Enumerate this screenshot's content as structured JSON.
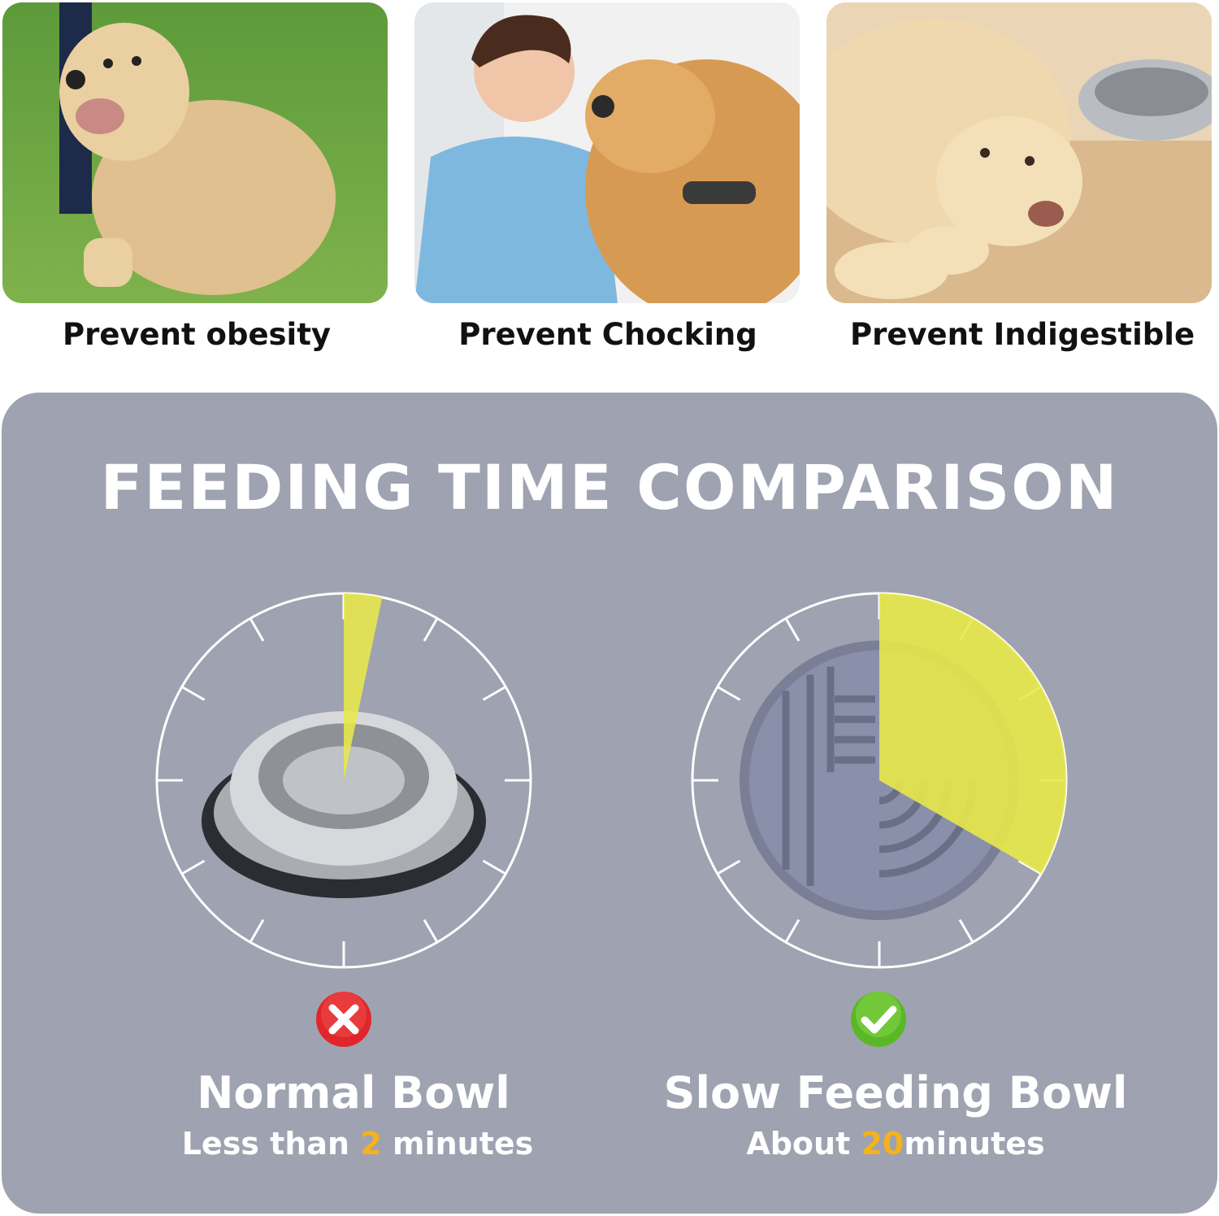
{
  "features": [
    {
      "photo": "overweight-labrador-photo",
      "caption": "Prevent obesity"
    },
    {
      "photo": "vet-with-golden-retriever-photo",
      "caption": "Prevent Chocking"
    },
    {
      "photo": "labrador-with-steel-bowl-photo",
      "caption": "Prevent Indigestible"
    }
  ],
  "comparison": {
    "title": "FEEDING TIME COMPARISON",
    "dial_ticks": 12,
    "normal": {
      "icon": "x-icon",
      "name": "Normal Bowl",
      "time_prefix": "Less than ",
      "time_value": "2",
      "time_suffix": " minutes",
      "dial_fraction": 0.033
    },
    "slow": {
      "icon": "check-icon",
      "name": "Slow Feeding Bowl",
      "time_prefix": "About ",
      "time_value": "20",
      "time_suffix": "minutes",
      "dial_fraction": 0.333
    }
  },
  "colors": {
    "panel_bg": "#9fa2b0",
    "highlight_text": "#f5b21a",
    "dial_fill": "#e8e84a",
    "error_red": "#e0262a",
    "ok_green": "#5ab828"
  }
}
